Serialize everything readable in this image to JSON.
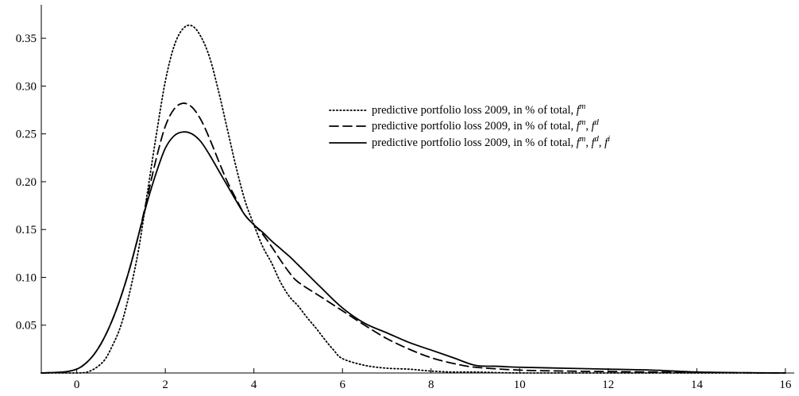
{
  "chart_data": {
    "type": "line",
    "title": "",
    "xlabel": "",
    "ylabel": "",
    "xlim": [
      -0.8,
      16.2
    ],
    "ylim": [
      0,
      0.385
    ],
    "x_ticks": [
      0,
      2,
      4,
      6,
      8,
      10,
      12,
      14,
      16
    ],
    "y_ticks": [
      0.05,
      0.1,
      0.15,
      0.2,
      0.25,
      0.3,
      0.35
    ],
    "x_tick_labels": [
      "0",
      "2",
      "4",
      "6",
      "8",
      "10",
      "12",
      "14",
      "16"
    ],
    "y_tick_labels": [
      "0.05",
      "0.10",
      "0.15",
      "0.20",
      "0.25",
      "0.30",
      "0.35"
    ],
    "grid": false,
    "legend_placement": "upper-middle-right",
    "series": [
      {
        "name": "predictive portfolio loss 2009, in % of total, f^m",
        "style": "dotted",
        "x": [
          -0.8,
          0,
          0.3,
          0.6,
          0.8,
          1.0,
          1.2,
          1.4,
          1.6,
          1.8,
          2.0,
          2.2,
          2.4,
          2.6,
          2.8,
          3.0,
          3.2,
          3.4,
          3.6,
          3.8,
          4.0,
          4.2,
          4.4,
          4.6,
          4.8,
          5.0,
          5.2,
          5.4,
          5.6,
          5.8,
          6.0,
          6.5,
          7.0,
          7.5,
          8.0,
          8.5,
          9.0,
          10,
          12,
          14,
          16
        ],
        "y": [
          0,
          0,
          0.002,
          0.012,
          0.028,
          0.05,
          0.085,
          0.13,
          0.19,
          0.25,
          0.305,
          0.342,
          0.36,
          0.363,
          0.352,
          0.33,
          0.295,
          0.255,
          0.215,
          0.18,
          0.155,
          0.132,
          0.115,
          0.095,
          0.08,
          0.07,
          0.058,
          0.047,
          0.035,
          0.024,
          0.015,
          0.008,
          0.005,
          0.004,
          0.002,
          0.001,
          0.001,
          0,
          0,
          0,
          0
        ]
      },
      {
        "name": "predictive portfolio loss 2009, in % of total, f^m, f^d",
        "style": "dashed",
        "x": [
          -0.8,
          -0.3,
          0,
          0.2,
          0.4,
          0.6,
          0.8,
          1.0,
          1.2,
          1.4,
          1.6,
          1.8,
          2.0,
          2.2,
          2.4,
          2.6,
          2.8,
          3.0,
          3.2,
          3.4,
          3.6,
          3.8,
          4.0,
          4.2,
          4.4,
          4.6,
          4.8,
          5.0,
          5.5,
          6.0,
          6.5,
          7.0,
          7.5,
          8.0,
          8.5,
          9.0,
          10,
          11,
          12,
          13,
          14,
          15,
          16
        ],
        "y": [
          0,
          0.001,
          0.004,
          0.01,
          0.02,
          0.035,
          0.055,
          0.08,
          0.11,
          0.145,
          0.185,
          0.225,
          0.258,
          0.276,
          0.282,
          0.278,
          0.265,
          0.245,
          0.222,
          0.2,
          0.182,
          0.165,
          0.155,
          0.145,
          0.132,
          0.118,
          0.105,
          0.095,
          0.08,
          0.065,
          0.05,
          0.036,
          0.025,
          0.016,
          0.01,
          0.006,
          0.003,
          0.002,
          0.0015,
          0.001,
          0.0005,
          0.0002,
          0
        ]
      },
      {
        "name": "predictive portfolio loss 2009, in % of total, f^m, f^d, f^i",
        "style": "solid",
        "x": [
          -0.8,
          -0.3,
          0,
          0.2,
          0.4,
          0.6,
          0.8,
          1.0,
          1.2,
          1.4,
          1.6,
          1.8,
          2.0,
          2.2,
          2.4,
          2.6,
          2.8,
          3.0,
          3.2,
          3.4,
          3.6,
          3.8,
          4.0,
          4.2,
          4.4,
          4.6,
          4.8,
          5.0,
          5.5,
          6.0,
          6.5,
          7.0,
          7.5,
          8.0,
          8.5,
          9.0,
          9.5,
          10,
          11,
          12,
          13,
          14,
          15,
          16
        ],
        "y": [
          0,
          0.001,
          0.004,
          0.01,
          0.02,
          0.035,
          0.055,
          0.08,
          0.11,
          0.145,
          0.18,
          0.21,
          0.235,
          0.248,
          0.252,
          0.25,
          0.242,
          0.228,
          0.212,
          0.196,
          0.18,
          0.165,
          0.155,
          0.147,
          0.138,
          0.13,
          0.122,
          0.113,
          0.09,
          0.068,
          0.052,
          0.042,
          0.032,
          0.024,
          0.016,
          0.008,
          0.007,
          0.006,
          0.005,
          0.004,
          0.003,
          0.001,
          0.0003,
          0
        ]
      }
    ],
    "legend": [
      {
        "base": "predictive portfolio loss 2009, in % of total, ",
        "superscripts": [
          "m"
        ],
        "style": "dotted"
      },
      {
        "base": "predictive portfolio loss 2009, in % of total, ",
        "superscripts": [
          "m",
          "d"
        ],
        "style": "dashed"
      },
      {
        "base": "predictive portfolio loss 2009, in % of total, ",
        "superscripts": [
          "m",
          "d",
          "i"
        ],
        "style": "solid"
      }
    ],
    "legend_symbol": "f"
  }
}
